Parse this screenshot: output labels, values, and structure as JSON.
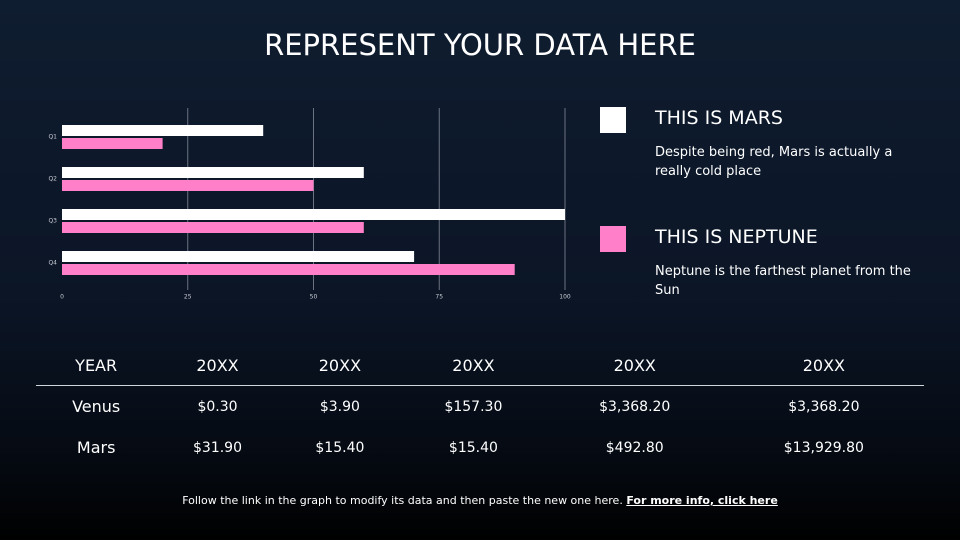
{
  "title": "REPRESENT YOUR DATA HERE",
  "chart_data": {
    "type": "hbar",
    "categories": [
      "Q1",
      "Q2",
      "Q3",
      "Q4"
    ],
    "series": [
      {
        "name": "THIS IS MARS",
        "color": "#ffffff",
        "values": [
          40,
          60,
          100,
          70
        ],
        "description": "Despite being red, Mars is actually a really cold place"
      },
      {
        "name": "THIS IS NEPTUNE",
        "color": "#ff80c8",
        "values": [
          20,
          50,
          60,
          90
        ],
        "description": "Neptune is the farthest planet from the Sun"
      }
    ],
    "xlim": [
      0,
      100
    ],
    "xticks": [
      0,
      25,
      50,
      75,
      100
    ],
    "grid": true
  },
  "table": {
    "header": [
      "YEAR",
      "20XX",
      "20XX",
      "20XX",
      "20XX",
      "20XX"
    ],
    "rows": [
      [
        "Venus",
        "$0.30",
        "$3.90",
        "$157.30",
        "$3,368.20",
        "$3,368.20"
      ],
      [
        "Mars",
        "$31.90",
        "$15.40",
        "$15.40",
        "$492.80",
        "$13,929.80"
      ]
    ]
  },
  "footer": {
    "text": "Follow the link in the graph to modify its data and then paste the new one here.",
    "link": "For more info, click here"
  }
}
